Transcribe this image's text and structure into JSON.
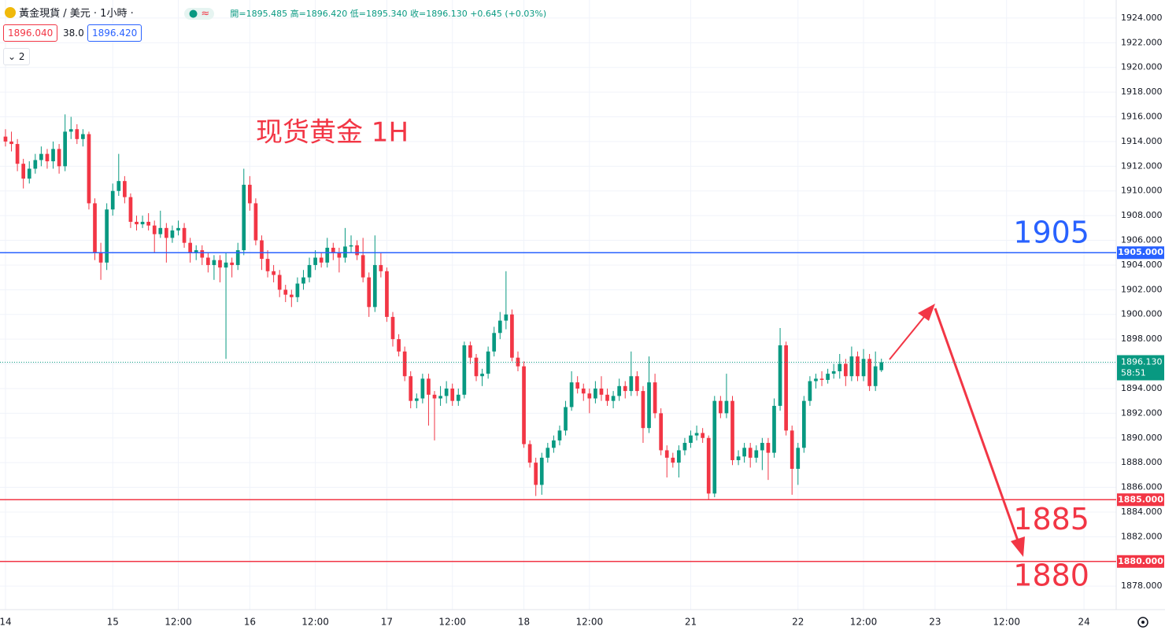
{
  "header": {
    "symbol": "黃金現貨 / 美元 · 1小時 ·",
    "ohlc": "開=1895.485 高=1896.420 低=1895.340 收=1896.130 +0.645 (+0.03%)",
    "bid": "1896.040",
    "spread": "38.0",
    "ask": "1896.420",
    "indicators": "2"
  },
  "chart_data": {
    "type": "candlestick",
    "title": "现货黄金 1H",
    "title_color": "#f23645",
    "up_color": "#089981",
    "down_color": "#f23645",
    "x": [
      0,
      1,
      2,
      3,
      4,
      5,
      6,
      7,
      8,
      9,
      10,
      11,
      12,
      13,
      14,
      15,
      16,
      17,
      18,
      19,
      20,
      21,
      22,
      23,
      24,
      25,
      26,
      27,
      28,
      29,
      30,
      31,
      32,
      33,
      34,
      35,
      36,
      37,
      38,
      39,
      40,
      41,
      42,
      43,
      44,
      45,
      46,
      47,
      48,
      49,
      50,
      51,
      52,
      53,
      54,
      55,
      56,
      57,
      58,
      59,
      60,
      61,
      62,
      63,
      64,
      65,
      66,
      67,
      68,
      69,
      70,
      71,
      72,
      73,
      74,
      75,
      76,
      77,
      78,
      79,
      80,
      81,
      82,
      83,
      84,
      85,
      86,
      87,
      88,
      89,
      90,
      91,
      92,
      93,
      94,
      95,
      96,
      97,
      98,
      99,
      100,
      101,
      102,
      103,
      104,
      105,
      106,
      107,
      108,
      109,
      110,
      111,
      112,
      113,
      114,
      115,
      116,
      117,
      118,
      119,
      120,
      121,
      122,
      123,
      124,
      125,
      126,
      127,
      128,
      129,
      130,
      131,
      132,
      133,
      134,
      135,
      136,
      137,
      138,
      139,
      140,
      141,
      142,
      143,
      144,
      145,
      146,
      147
    ],
    "ohlc": [
      [
        1914.4,
        1915.0,
        1913.6,
        1914.0
      ],
      [
        1914.0,
        1914.8,
        1913.2,
        1913.8
      ],
      [
        1913.8,
        1914.2,
        1911.6,
        1912.2
      ],
      [
        1912.2,
        1912.6,
        1910.2,
        1911.0
      ],
      [
        1911.0,
        1912.4,
        1910.6,
        1911.8
      ],
      [
        1911.8,
        1913.0,
        1911.4,
        1912.5
      ],
      [
        1912.5,
        1913.6,
        1912.0,
        1913.0
      ],
      [
        1913.0,
        1913.4,
        1911.8,
        1912.4
      ],
      [
        1912.4,
        1914.0,
        1911.8,
        1913.4
      ],
      [
        1913.4,
        1913.8,
        1911.4,
        1912.0
      ],
      [
        1912.0,
        1916.2,
        1911.6,
        1914.8
      ],
      [
        1914.8,
        1916.0,
        1914.2,
        1915.0
      ],
      [
        1915.0,
        1915.4,
        1913.8,
        1914.2
      ],
      [
        1914.2,
        1915.0,
        1913.6,
        1914.6
      ],
      [
        1914.6,
        1914.8,
        1908.5,
        1909.0
      ],
      [
        1909.0,
        1909.4,
        1904.4,
        1905.0
      ],
      [
        1905.0,
        1905.8,
        1902.8,
        1904.2
      ],
      [
        1904.2,
        1909.0,
        1903.6,
        1908.5
      ],
      [
        1908.5,
        1910.6,
        1908.0,
        1910.0
      ],
      [
        1910.0,
        1913.0,
        1909.6,
        1910.8
      ],
      [
        1910.8,
        1911.2,
        1909.0,
        1909.5
      ],
      [
        1909.5,
        1909.8,
        1907.0,
        1907.5
      ],
      [
        1907.5,
        1908.0,
        1906.8,
        1907.3
      ],
      [
        1907.3,
        1908.0,
        1907.0,
        1907.5
      ],
      [
        1907.5,
        1908.2,
        1906.8,
        1907.2
      ],
      [
        1907.2,
        1907.6,
        1905.0,
        1906.5
      ],
      [
        1906.5,
        1908.4,
        1906.2,
        1907.0
      ],
      [
        1907.0,
        1907.4,
        1904.2,
        1906.2
      ],
      [
        1906.2,
        1907.2,
        1905.8,
        1906.8
      ],
      [
        1906.8,
        1907.6,
        1906.4,
        1907.0
      ],
      [
        1907.0,
        1907.4,
        1905.4,
        1905.8
      ],
      [
        1905.8,
        1906.2,
        1904.2,
        1905.0
      ],
      [
        1905.0,
        1905.6,
        1904.4,
        1905.2
      ],
      [
        1905.2,
        1905.6,
        1904.0,
        1904.6
      ],
      [
        1904.6,
        1905.0,
        1903.4,
        1904.0
      ],
      [
        1904.0,
        1904.8,
        1902.8,
        1904.4
      ],
      [
        1904.4,
        1904.8,
        1902.6,
        1903.8
      ],
      [
        1903.8,
        1905.0,
        1896.4,
        1904.2
      ],
      [
        1904.2,
        1904.6,
        1903.0,
        1904.0
      ],
      [
        1904.0,
        1905.8,
        1903.6,
        1905.2
      ],
      [
        1905.2,
        1911.8,
        1904.8,
        1910.5
      ],
      [
        1910.5,
        1911.2,
        1908.4,
        1909.0
      ],
      [
        1909.0,
        1909.4,
        1905.6,
        1906.0
      ],
      [
        1906.0,
        1906.4,
        1903.6,
        1904.5
      ],
      [
        1904.5,
        1905.2,
        1903.0,
        1903.5
      ],
      [
        1903.5,
        1904.0,
        1902.6,
        1903.2
      ],
      [
        1903.2,
        1903.6,
        1901.4,
        1902.0
      ],
      [
        1902.0,
        1902.4,
        1901.0,
        1901.6
      ],
      [
        1901.6,
        1902.0,
        1900.6,
        1901.4
      ],
      [
        1901.4,
        1903.0,
        1901.0,
        1902.5
      ],
      [
        1902.5,
        1903.6,
        1902.0,
        1903.0
      ],
      [
        1903.0,
        1904.6,
        1902.6,
        1904.0
      ],
      [
        1904.0,
        1905.2,
        1903.6,
        1904.6
      ],
      [
        1904.6,
        1905.0,
        1903.8,
        1904.2
      ],
      [
        1904.2,
        1906.2,
        1903.8,
        1905.4
      ],
      [
        1905.4,
        1905.8,
        1904.4,
        1905.0
      ],
      [
        1905.0,
        1905.4,
        1903.4,
        1904.6
      ],
      [
        1904.6,
        1907.0,
        1904.2,
        1905.5
      ],
      [
        1905.5,
        1906.4,
        1905.0,
        1905.6
      ],
      [
        1905.6,
        1906.0,
        1904.4,
        1904.8
      ],
      [
        1904.8,
        1906.2,
        1902.6,
        1903.0
      ],
      [
        1903.0,
        1903.4,
        1899.8,
        1900.6
      ],
      [
        1900.6,
        1906.4,
        1900.2,
        1904.0
      ],
      [
        1904.0,
        1905.0,
        1903.0,
        1903.5
      ],
      [
        1903.5,
        1903.8,
        1899.4,
        1899.8
      ],
      [
        1899.8,
        1900.2,
        1897.4,
        1898.0
      ],
      [
        1898.0,
        1898.4,
        1896.6,
        1897.0
      ],
      [
        1897.0,
        1897.4,
        1894.6,
        1895.0
      ],
      [
        1895.0,
        1895.4,
        1892.4,
        1893.0
      ],
      [
        1893.0,
        1893.6,
        1892.4,
        1893.2
      ],
      [
        1893.2,
        1895.2,
        1892.8,
        1894.8
      ],
      [
        1894.8,
        1895.2,
        1891.0,
        1893.5
      ],
      [
        1893.5,
        1893.8,
        1889.8,
        1893.2
      ],
      [
        1893.2,
        1894.2,
        1892.6,
        1893.4
      ],
      [
        1893.4,
        1894.6,
        1892.8,
        1894.0
      ],
      [
        1894.0,
        1894.4,
        1892.6,
        1893.0
      ],
      [
        1893.0,
        1894.0,
        1892.6,
        1893.5
      ],
      [
        1893.5,
        1897.8,
        1893.2,
        1897.5
      ],
      [
        1897.5,
        1897.8,
        1896.0,
        1896.5
      ],
      [
        1896.5,
        1896.8,
        1894.6,
        1895.0
      ],
      [
        1895.0,
        1895.6,
        1894.2,
        1895.2
      ],
      [
        1895.2,
        1897.4,
        1894.8,
        1897.0
      ],
      [
        1897.0,
        1899.0,
        1896.6,
        1898.5
      ],
      [
        1898.5,
        1900.2,
        1898.0,
        1899.5
      ],
      [
        1899.5,
        1903.5,
        1898.8,
        1900.0
      ],
      [
        1900.0,
        1900.4,
        1896.2,
        1896.5
      ],
      [
        1896.5,
        1897.0,
        1895.4,
        1895.8
      ],
      [
        1895.8,
        1896.2,
        1889.2,
        1889.5
      ],
      [
        1889.5,
        1889.8,
        1887.6,
        1888.0
      ],
      [
        1888.0,
        1888.4,
        1885.3,
        1886.2
      ],
      [
        1886.2,
        1888.8,
        1885.4,
        1888.4
      ],
      [
        1888.4,
        1889.6,
        1888.0,
        1889.2
      ],
      [
        1889.2,
        1890.2,
        1888.8,
        1889.8
      ],
      [
        1889.8,
        1891.0,
        1889.4,
        1890.6
      ],
      [
        1890.6,
        1893.0,
        1890.2,
        1892.5
      ],
      [
        1892.5,
        1895.4,
        1892.2,
        1894.5
      ],
      [
        1894.5,
        1895.0,
        1893.6,
        1894.0
      ],
      [
        1894.0,
        1894.4,
        1893.0,
        1893.6
      ],
      [
        1893.6,
        1894.0,
        1892.0,
        1893.2
      ],
      [
        1893.2,
        1894.6,
        1892.8,
        1894.0
      ],
      [
        1894.0,
        1895.0,
        1893.0,
        1893.5
      ],
      [
        1893.5,
        1894.0,
        1892.6,
        1893.0
      ],
      [
        1893.0,
        1893.8,
        1892.4,
        1893.4
      ],
      [
        1893.4,
        1894.8,
        1893.0,
        1894.2
      ],
      [
        1894.2,
        1894.6,
        1893.2,
        1893.8
      ],
      [
        1893.8,
        1897.0,
        1893.4,
        1895.0
      ],
      [
        1895.0,
        1895.4,
        1893.4,
        1893.8
      ],
      [
        1893.8,
        1894.2,
        1889.6,
        1890.8
      ],
      [
        1890.8,
        1896.6,
        1890.4,
        1894.5
      ],
      [
        1894.5,
        1895.2,
        1891.6,
        1892.0
      ],
      [
        1892.0,
        1892.4,
        1888.6,
        1889.0
      ],
      [
        1889.0,
        1889.4,
        1886.8,
        1888.4
      ],
      [
        1888.4,
        1888.8,
        1887.6,
        1888.0
      ],
      [
        1888.0,
        1889.4,
        1886.8,
        1889.0
      ],
      [
        1889.0,
        1890.0,
        1888.6,
        1889.6
      ],
      [
        1889.6,
        1890.6,
        1889.2,
        1890.2
      ],
      [
        1890.2,
        1891.0,
        1889.8,
        1890.4
      ],
      [
        1890.4,
        1890.8,
        1889.6,
        1890.0
      ],
      [
        1890.0,
        1890.2,
        1885.0,
        1885.5
      ],
      [
        1885.5,
        1893.4,
        1885.2,
        1893.0
      ],
      [
        1893.0,
        1893.4,
        1891.6,
        1892.0
      ],
      [
        1892.0,
        1895.2,
        1891.6,
        1893.0
      ],
      [
        1893.0,
        1893.4,
        1887.8,
        1888.2
      ],
      [
        1888.2,
        1889.0,
        1887.8,
        1888.5
      ],
      [
        1888.5,
        1889.6,
        1888.0,
        1889.2
      ],
      [
        1889.2,
        1889.6,
        1887.6,
        1888.4
      ],
      [
        1888.4,
        1889.4,
        1888.0,
        1889.0
      ],
      [
        1889.0,
        1890.0,
        1887.4,
        1889.6
      ],
      [
        1889.6,
        1890.0,
        1886.6,
        1888.8
      ],
      [
        1888.8,
        1893.2,
        1888.4,
        1892.6
      ],
      [
        1892.6,
        1898.9,
        1892.2,
        1897.5
      ],
      [
        1897.5,
        1897.8,
        1890.2,
        1890.6
      ],
      [
        1890.6,
        1891.0,
        1885.4,
        1887.5
      ],
      [
        1887.5,
        1889.6,
        1886.2,
        1889.2
      ],
      [
        1889.2,
        1893.4,
        1888.8,
        1893.0
      ],
      [
        1893.0,
        1895.0,
        1892.6,
        1894.6
      ],
      [
        1894.6,
        1895.2,
        1894.0,
        1894.8
      ],
      [
        1894.8,
        1895.4,
        1894.2,
        1894.7
      ],
      [
        1894.7,
        1895.6,
        1894.4,
        1895.2
      ],
      [
        1895.2,
        1896.0,
        1894.8,
        1895.4
      ],
      [
        1895.4,
        1896.8,
        1894.8,
        1896.0
      ],
      [
        1896.0,
        1896.4,
        1894.2,
        1895.0
      ],
      [
        1895.0,
        1897.4,
        1894.6,
        1896.6
      ],
      [
        1896.6,
        1897.0,
        1894.6,
        1895.0
      ],
      [
        1895.0,
        1897.2,
        1894.6,
        1896.4
      ],
      [
        1896.4,
        1896.8,
        1893.8,
        1894.2
      ],
      [
        1894.2,
        1897.0,
        1893.8,
        1895.8
      ],
      [
        1895.485,
        1896.42,
        1895.34,
        1896.13
      ]
    ],
    "xlim": [
      -0.92,
      186.4
    ],
    "xticks": [
      {
        "value": 0,
        "label": "14"
      },
      {
        "value": 18,
        "label": "15"
      },
      {
        "value": 29,
        "label": "12:00"
      },
      {
        "value": 41,
        "label": "16"
      },
      {
        "value": 52,
        "label": "12:00"
      },
      {
        "value": 64,
        "label": "17"
      },
      {
        "value": 75,
        "label": "12:00"
      },
      {
        "value": 87,
        "label": "18"
      },
      {
        "value": 98,
        "label": "12:00"
      },
      {
        "value": 115,
        "label": "21"
      },
      {
        "value": 133,
        "label": "22"
      },
      {
        "value": 144,
        "label": "12:00"
      },
      {
        "value": 156,
        "label": "23"
      },
      {
        "value": 168,
        "label": "12:00"
      },
      {
        "value": 181,
        "label": "24"
      }
    ],
    "ylim": [
      1876.1,
      1925.46
    ],
    "yticks": [
      {
        "value": 1878,
        "label": "1878.000"
      },
      {
        "value": 1880,
        "label": "1880.000"
      },
      {
        "value": 1882,
        "label": "1882.000"
      },
      {
        "value": 1884,
        "label": "1884.000"
      },
      {
        "value": 1886,
        "label": "1886.000"
      },
      {
        "value": 1888,
        "label": "1888.000"
      },
      {
        "value": 1890,
        "label": "1890.000"
      },
      {
        "value": 1892,
        "label": "1892.000"
      },
      {
        "value": 1894,
        "label": "1894.000"
      },
      {
        "value": 1896,
        "label": "1896.000"
      },
      {
        "value": 1898,
        "label": "1898.000"
      },
      {
        "value": 1900,
        "label": "1900.000"
      },
      {
        "value": 1902,
        "label": "1902.000"
      },
      {
        "value": 1904,
        "label": "1904.000"
      },
      {
        "value": 1906,
        "label": "1906.000"
      },
      {
        "value": 1908,
        "label": "1908.000"
      },
      {
        "value": 1910,
        "label": "1910.000"
      },
      {
        "value": 1912,
        "label": "1912.000"
      },
      {
        "value": 1914,
        "label": "1914.000"
      },
      {
        "value": 1916,
        "label": "1916.000"
      },
      {
        "value": 1918,
        "label": "1918.000"
      },
      {
        "value": 1920,
        "label": "1920.000"
      },
      {
        "value": 1922,
        "label": "1922.000"
      },
      {
        "value": 1924,
        "label": "1924.000"
      }
    ],
    "grid": true,
    "levels": [
      {
        "value": 1905,
        "label": "1905.000",
        "annotation": "1905",
        "color": "#2962ff"
      },
      {
        "value": 1885,
        "label": "1885.000",
        "annotation": "1885",
        "color": "#f23645"
      },
      {
        "value": 1880,
        "label": "1880.000",
        "annotation": "1880",
        "color": "#f23645"
      }
    ],
    "last_price": {
      "value": 1896.13,
      "label": "1896.130",
      "countdown": "58:51",
      "color": "#089981"
    }
  }
}
